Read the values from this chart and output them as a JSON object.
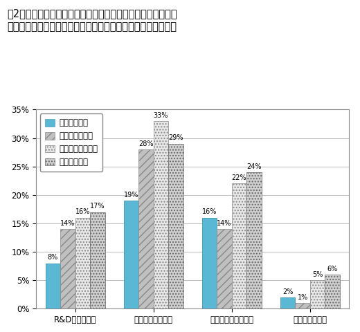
{
  "title_line1": "図2　企業の研究開発へのリスク資金制約、論文公表及び政府",
  "title_line2": "　　資金の支援の有無（研究開発プロジェクトの事業目的別）",
  "categories": [
    "R&D投資の制約",
    "事業化投資の制約",
    "科学技術論文の公表",
    "政府資金の有無"
  ],
  "series_labels": [
    "コア事業対象",
    "非コア事業対象",
    "新規事業立ち上げ",
    "技術基盤強化"
  ],
  "values": [
    [
      8,
      19,
      16,
      2
    ],
    [
      14,
      28,
      14,
      1
    ],
    [
      16,
      33,
      22,
      5
    ],
    [
      17,
      29,
      24,
      6
    ]
  ],
  "ylim": [
    0,
    35
  ],
  "yticks": [
    0,
    5,
    10,
    15,
    20,
    25,
    30,
    35
  ],
  "background_color": "#FFFFFF",
  "grid_color": "#BBBBBB",
  "bar_width": 0.19
}
